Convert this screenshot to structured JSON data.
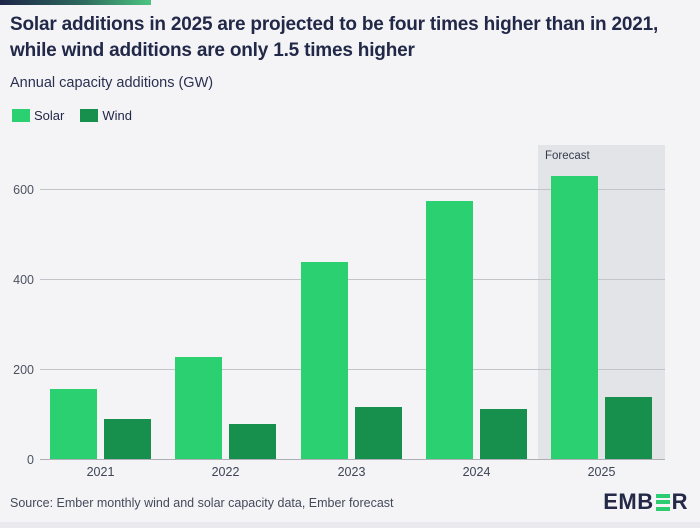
{
  "page": {
    "background": "#f4f4f7",
    "accent_gradient_left": "#1d2547",
    "accent_gradient_right": "#4cc581"
  },
  "header": {
    "title": "Solar additions in 2025 are projected to be four times higher than in 2021, while wind additions are only 1.5 times higher",
    "subtitle": "Annual capacity additions (GW)"
  },
  "chart_data": {
    "type": "bar",
    "title": "Annual capacity additions (GW)",
    "categories": [
      "2021",
      "2022",
      "2023",
      "2024",
      "2025"
    ],
    "series": [
      {
        "name": "Solar",
        "color": "#2bd171",
        "values": [
          155,
          226,
          438,
          574,
          628
        ]
      },
      {
        "name": "Wind",
        "color": "#17904e",
        "values": [
          89,
          78,
          115,
          112,
          137
        ]
      }
    ],
    "xlabel": "",
    "ylabel": "GW",
    "ylim": [
      0,
      700
    ],
    "yticks": [
      0,
      200,
      400,
      600
    ],
    "grid": true,
    "gridline_color": "#c3c4ca",
    "legend_position": "top-left",
    "forecast": {
      "label": "Forecast",
      "category": "2025",
      "panel_color": "#e3e4e8"
    }
  },
  "footer": {
    "source": "Source: Ember monthly wind and solar capacity data, Ember forecast",
    "logo": {
      "prefix": "EMB",
      "suffix": "R",
      "bars_icon": "ember-e-bars",
      "bar_color": "#2ecc71",
      "text_color": "#232946"
    }
  }
}
